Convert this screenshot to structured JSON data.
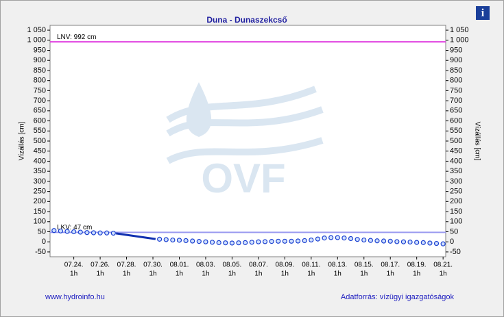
{
  "chart_data": {
    "type": "scatter",
    "title": "Duna - Dunaszekcső",
    "y_label": "Vízállás [cm]",
    "y2_label": "Vízállás [cm]",
    "footer_left": "www.hydroinfo.hu",
    "footer_right": "Adatforrás: vízügyi igazgatóságok",
    "info_icon": "i",
    "watermark": "OVF",
    "xlim": [
      -1.8,
      28.2
    ],
    "ylim": [
      -74,
      1074
    ],
    "xticks": [
      {
        "value": 0,
        "label": "07.24.",
        "time": "1h"
      },
      {
        "value": 2,
        "label": "07.26.",
        "time": "1h"
      },
      {
        "value": 4,
        "label": "07.28.",
        "time": "1h"
      },
      {
        "value": 6,
        "label": "07.30.",
        "time": "1h"
      },
      {
        "value": 8,
        "label": "08.01.",
        "time": "1h"
      },
      {
        "value": 10,
        "label": "08.03.",
        "time": "1h"
      },
      {
        "value": 12,
        "label": "08.05.",
        "time": "1h"
      },
      {
        "value": 14,
        "label": "08.07.",
        "time": "1h"
      },
      {
        "value": 16,
        "label": "08.09.",
        "time": "1h"
      },
      {
        "value": 18,
        "label": "08.11.",
        "time": "1h"
      },
      {
        "value": 20,
        "label": "08.13.",
        "time": "1h"
      },
      {
        "value": 22,
        "label": "08.15.",
        "time": "1h"
      },
      {
        "value": 24,
        "label": "08.17.",
        "time": "1h"
      },
      {
        "value": 26,
        "label": "08.19.",
        "time": "1h"
      },
      {
        "value": 28,
        "label": "08.21.",
        "time": "1h"
      }
    ],
    "yticks": [
      {
        "value": 1050,
        "label": "1 050"
      },
      {
        "value": 1000,
        "label": "1 000"
      },
      950,
      900,
      850,
      800,
      750,
      700,
      650,
      600,
      550,
      500,
      450,
      400,
      350,
      300,
      250,
      200,
      150,
      100,
      50,
      0,
      -50
    ],
    "reference_lines": [
      {
        "label": "LNV: 992 cm",
        "value": 992,
        "color": "#e040e0"
      },
      {
        "label": "LKV: 47 cm",
        "value": 47,
        "color": "#9a9af0"
      }
    ],
    "series": [
      {
        "color": "#1a3fd0",
        "marker": "circle",
        "x": [
          -1.5,
          -1,
          -0.5,
          0,
          0.5,
          1,
          1.5,
          2,
          2.5,
          3,
          6.5,
          7,
          7.5,
          8,
          8.5,
          9,
          9.5,
          10,
          10.5,
          11,
          11.5,
          12,
          12.5,
          13,
          13.5,
          14,
          14.5,
          15,
          15.5,
          16,
          16.5,
          17,
          17.5,
          18,
          18.5,
          19,
          19.5,
          20,
          20.5,
          21,
          21.5,
          22,
          22.5,
          23,
          23.5,
          24,
          24.5,
          25,
          25.5,
          26,
          26.5,
          27,
          27.5,
          28
        ],
        "values": [
          56,
          54,
          52,
          50,
          48,
          46,
          45,
          44,
          44,
          43,
          13,
          11,
          9,
          8,
          6,
          4,
          2,
          0,
          -2,
          -4,
          -5,
          -6,
          -5,
          -4,
          -2,
          0,
          1,
          2,
          3,
          3,
          3,
          4,
          6,
          9,
          14,
          19,
          21,
          21,
          19,
          16,
          12,
          9,
          7,
          5,
          4,
          3,
          1,
          0,
          -1,
          -3,
          -4,
          -6,
          -8,
          -10
        ]
      },
      {
        "color": "#1030b0",
        "marker": "line",
        "x": [
          3.2,
          6.2
        ],
        "values": [
          42,
          14
        ]
      }
    ]
  }
}
